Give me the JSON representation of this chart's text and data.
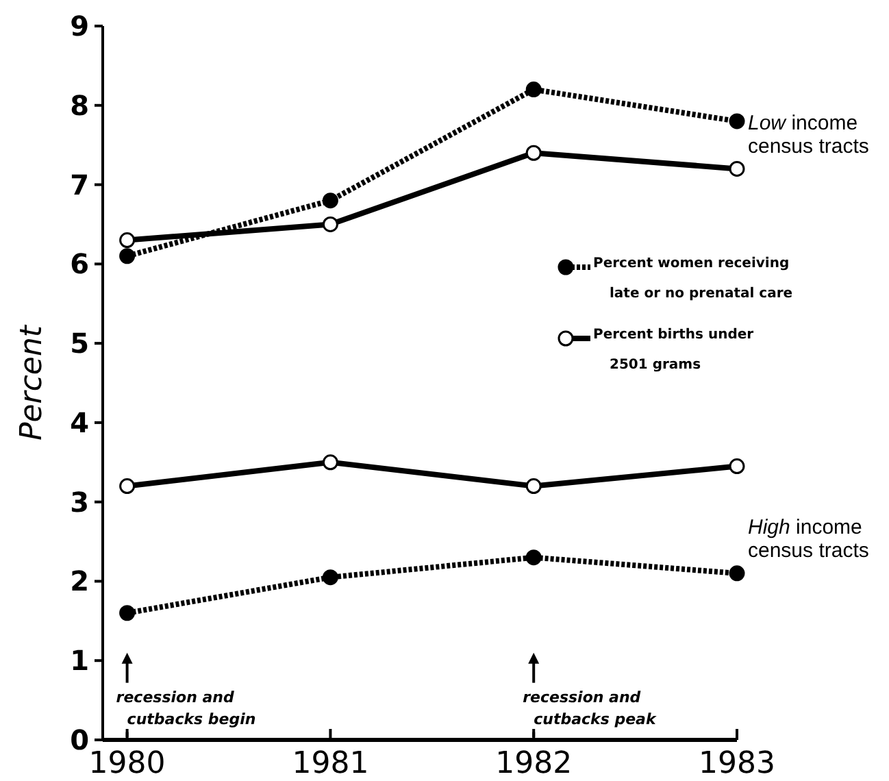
{
  "chart_data": {
    "type": "line",
    "ylabel": "Percent",
    "x": [
      1980,
      1981,
      1982,
      1983
    ],
    "xlim": [
      1979.88,
      1983
    ],
    "xticks": [
      1980,
      1981,
      1982,
      1983
    ],
    "ylim": [
      0,
      9
    ],
    "yticks": [
      0,
      1,
      2,
      3,
      4,
      5,
      6,
      7,
      8,
      9
    ],
    "grid": false,
    "legend": "right",
    "marker": "circle",
    "series": [
      {
        "name": "Percent women receiving late or no prenatal care",
        "color": "#000000",
        "line_style": "dotted",
        "values": [
          6.1,
          6.8,
          8.2,
          7.8
        ]
      },
      {
        "name": "Percent births under 2501 grams",
        "color": "#000000",
        "line_style": "solid",
        "values": [
          6.3,
          6.5,
          7.4,
          7.2
        ]
      },
      {
        "color": "#000000",
        "line_style": "solid",
        "values": [
          3.2,
          3.5,
          3.2,
          3.45
        ]
      },
      {
        "color": "#000000",
        "line_style": "dotted",
        "values": [
          1.6,
          2.05,
          2.3,
          2.1
        ]
      }
    ],
    "annotations": [
      "Low income census tracts",
      "High income census tracts",
      "recession and cutbacks begin",
      "recession and cutbacks peak"
    ]
  }
}
